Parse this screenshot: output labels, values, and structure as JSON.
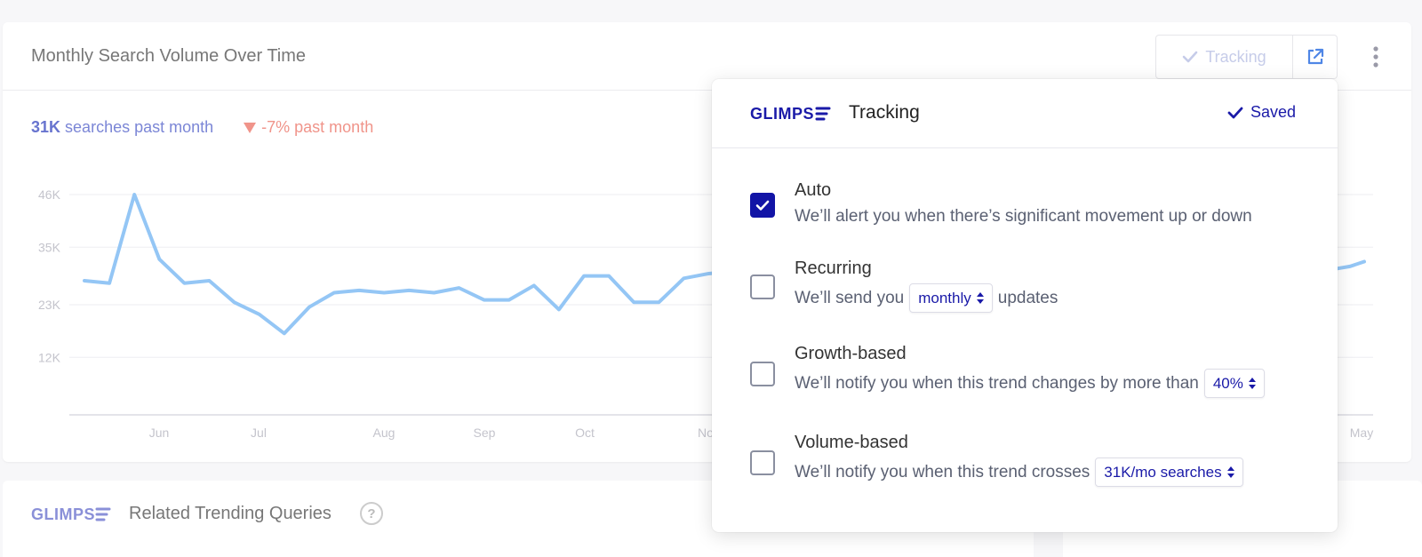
{
  "card": {
    "title": "Monthly Search Volume Over Time",
    "tracking_label": "Tracking",
    "stats": {
      "count_value": "31K",
      "count_label": "searches past month",
      "change_label": "-7% past month"
    }
  },
  "chart_data": {
    "type": "line",
    "y_ticks": [
      "46K",
      "35K",
      "23K",
      "12K"
    ],
    "y_tick_values": [
      46,
      35,
      23,
      12
    ],
    "ylim": [
      0,
      46
    ],
    "x_ticks": [
      "Jun",
      "Jul",
      "Aug",
      "Sep",
      "Oct",
      "No",
      "May"
    ],
    "values": [
      28,
      27.5,
      46,
      32.5,
      27.5,
      28,
      23.5,
      21,
      17,
      22.5,
      25.5,
      26,
      25.5,
      26,
      25.5,
      26.5,
      24,
      24,
      27,
      22,
      29,
      29,
      23.5,
      23.5,
      28.5,
      29.5,
      30
    ],
    "right_values": [
      30,
      30.5,
      31,
      32
    ],
    "grid": true,
    "color": "#94c6f5"
  },
  "popup": {
    "title": "Tracking",
    "saved_label": "Saved",
    "options": [
      {
        "name": "Auto",
        "checked": true,
        "desc": "We’ll alert you when there’s significant movement up or down"
      },
      {
        "name": "Recurring",
        "checked": false,
        "desc_before": "We’ll send you",
        "select": "monthly",
        "desc_after": "updates"
      },
      {
        "name": "Growth-based",
        "checked": false,
        "desc_before": "We’ll notify you when this trend changes by more than",
        "select": "40%"
      },
      {
        "name": "Volume-based",
        "checked": false,
        "desc_before": "We’ll notify you when this trend crosses",
        "select": "31K/mo searches"
      }
    ]
  },
  "related": {
    "title": "Related Trending Queries",
    "help": "?"
  },
  "brand": {
    "color": "#1a1aa8",
    "faded_color": "#8a90d8"
  }
}
